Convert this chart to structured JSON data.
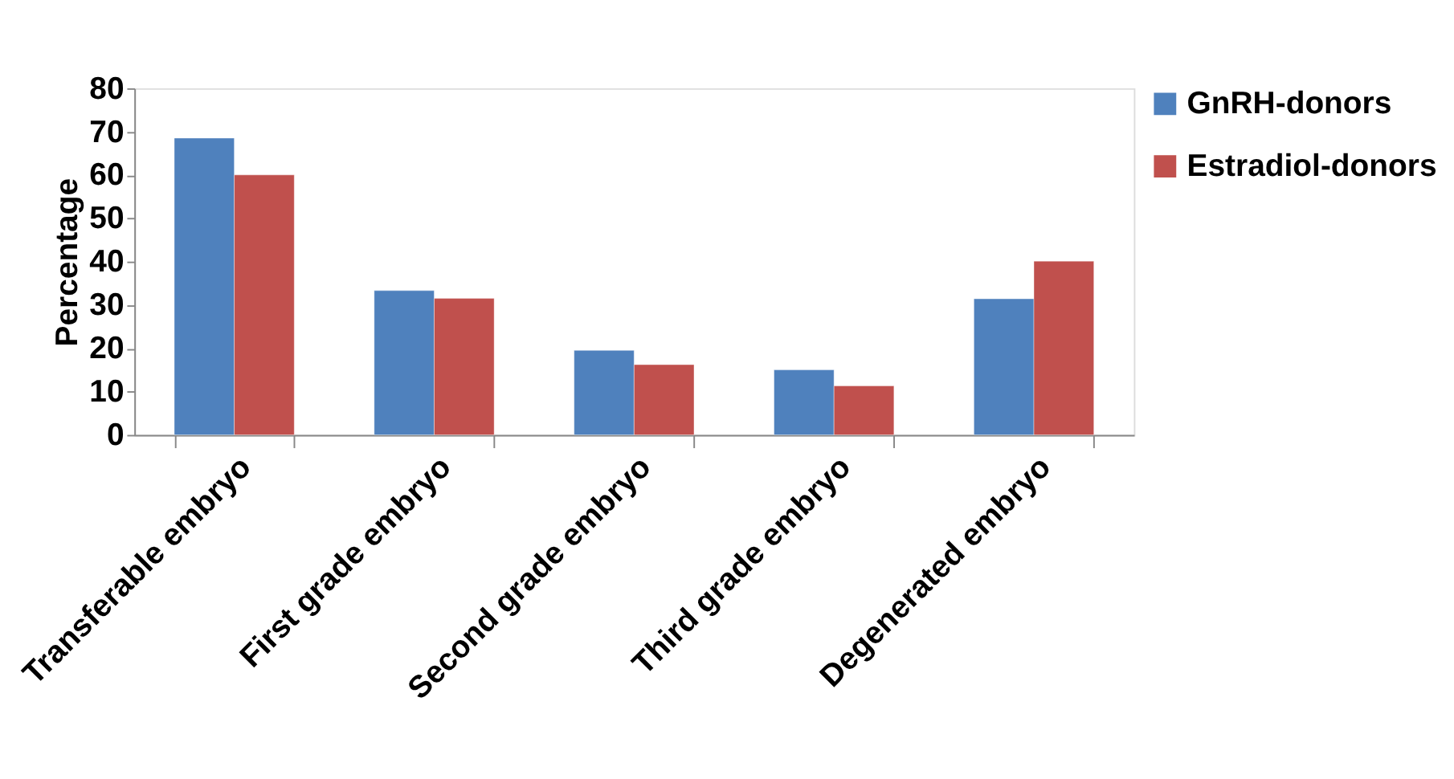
{
  "chart_data": {
    "type": "bar",
    "ylabel": "Percentage",
    "categories": [
      "Transferable embryo",
      "First grade embryo",
      "Second grade embryo",
      "Third grade embryo",
      "Degenerated embryo"
    ],
    "series": [
      {
        "name": "GnRH-donors",
        "color": "#4f81bd",
        "values": [
          68.5,
          33.3,
          19.5,
          15,
          31.4
        ]
      },
      {
        "name": "Estradiol-donors",
        "color": "#c0504d",
        "values": [
          60,
          31.5,
          16.2,
          11.3,
          40.1
        ]
      }
    ],
    "ylim": [
      0,
      80
    ],
    "yticks": [
      0,
      10,
      20,
      30,
      40,
      50,
      60,
      70,
      80
    ],
    "grid": false,
    "legend": "right"
  }
}
